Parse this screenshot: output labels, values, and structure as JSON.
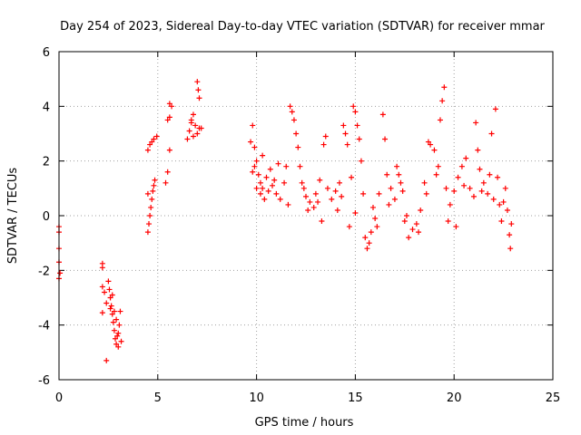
{
  "chart_data": {
    "type": "scatter",
    "title": "Day 254 of 2023, Sidereal Day-to-day VTEC variation (SDTVAR) for receiver mmar",
    "xlabel": "GPS time / hours",
    "ylabel": "SDTVAR / TECUs",
    "xlim": [
      0,
      25
    ],
    "ylim": [
      -6,
      6
    ],
    "xticks": [
      0,
      5,
      10,
      15,
      20,
      25
    ],
    "yticks": [
      -6,
      -4,
      -2,
      0,
      2,
      4,
      6
    ],
    "grid": true,
    "marker": "+",
    "marker_color": "#ff0000",
    "grid_color": "#a0a0a0",
    "series": [
      {
        "name": "SDTVAR",
        "points": [
          [
            0.0,
            -0.4
          ],
          [
            0.0,
            -1.2
          ],
          [
            0.0,
            -1.7
          ],
          [
            0.0,
            -2.3
          ],
          [
            0.0,
            -0.6
          ],
          [
            0.05,
            -2.1
          ],
          [
            2.2,
            -1.75
          ],
          [
            2.2,
            -1.9
          ],
          [
            2.2,
            -2.6
          ],
          [
            2.2,
            -3.55
          ],
          [
            2.3,
            -2.8
          ],
          [
            2.4,
            -5.3
          ],
          [
            2.4,
            -3.2
          ],
          [
            2.5,
            -2.4
          ],
          [
            2.55,
            -2.7
          ],
          [
            2.6,
            -3.0
          ],
          [
            2.65,
            -3.3
          ],
          [
            2.7,
            -3.6
          ],
          [
            2.75,
            -3.9
          ],
          [
            2.8,
            -4.2
          ],
          [
            2.85,
            -4.5
          ],
          [
            2.9,
            -4.7
          ],
          [
            2.95,
            -4.4
          ],
          [
            3.0,
            -4.8
          ],
          [
            3.05,
            -4.0
          ],
          [
            3.1,
            -3.5
          ],
          [
            3.15,
            -4.6
          ],
          [
            2.7,
            -2.9
          ],
          [
            2.8,
            -3.5
          ],
          [
            2.9,
            -3.8
          ],
          [
            3.0,
            -4.3
          ],
          [
            2.6,
            -3.4
          ],
          [
            4.5,
            -0.6
          ],
          [
            4.55,
            -0.3
          ],
          [
            4.6,
            0.0
          ],
          [
            4.65,
            0.3
          ],
          [
            4.7,
            0.6
          ],
          [
            4.75,
            0.9
          ],
          [
            4.5,
            0.8
          ],
          [
            4.8,
            1.1
          ],
          [
            4.85,
            1.3
          ],
          [
            4.5,
            2.4
          ],
          [
            4.6,
            2.6
          ],
          [
            4.7,
            2.7
          ],
          [
            4.8,
            2.8
          ],
          [
            4.95,
            2.9
          ],
          [
            5.4,
            1.2
          ],
          [
            5.5,
            1.6
          ],
          [
            5.6,
            2.4
          ],
          [
            5.5,
            3.5
          ],
          [
            5.6,
            4.1
          ],
          [
            5.7,
            4.0
          ],
          [
            5.6,
            3.6
          ],
          [
            6.5,
            2.8
          ],
          [
            6.6,
            3.1
          ],
          [
            6.7,
            3.4
          ],
          [
            6.8,
            3.7
          ],
          [
            6.9,
            3.3
          ],
          [
            7.0,
            3.0
          ],
          [
            7.1,
            3.2
          ],
          [
            6.7,
            3.5
          ],
          [
            6.8,
            2.9
          ],
          [
            7.0,
            4.9
          ],
          [
            7.05,
            4.6
          ],
          [
            7.1,
            4.3
          ],
          [
            7.2,
            3.2
          ],
          [
            9.7,
            2.7
          ],
          [
            9.8,
            3.3
          ],
          [
            9.9,
            2.5
          ],
          [
            10.0,
            2.0
          ],
          [
            10.1,
            1.5
          ],
          [
            10.2,
            1.2
          ],
          [
            10.3,
            1.0
          ],
          [
            9.8,
            1.6
          ],
          [
            9.9,
            1.8
          ],
          [
            10.0,
            1.0
          ],
          [
            10.2,
            0.8
          ],
          [
            10.4,
            0.6
          ],
          [
            10.6,
            0.9
          ],
          [
            10.8,
            1.1
          ],
          [
            10.5,
            1.4
          ],
          [
            10.7,
            1.7
          ],
          [
            10.9,
            1.3
          ],
          [
            11.0,
            0.8
          ],
          [
            11.2,
            0.6
          ],
          [
            11.4,
            1.2
          ],
          [
            11.5,
            1.8
          ],
          [
            11.7,
            4.0
          ],
          [
            11.8,
            3.8
          ],
          [
            11.9,
            3.5
          ],
          [
            12.0,
            3.0
          ],
          [
            12.1,
            2.5
          ],
          [
            12.2,
            1.8
          ],
          [
            12.3,
            1.2
          ],
          [
            12.5,
            0.7
          ],
          [
            12.7,
            0.5
          ],
          [
            12.9,
            0.3
          ],
          [
            13.0,
            0.8
          ],
          [
            13.2,
            1.3
          ],
          [
            13.4,
            2.6
          ],
          [
            13.5,
            2.9
          ],
          [
            13.6,
            1.0
          ],
          [
            13.8,
            0.6
          ],
          [
            14.0,
            0.9
          ],
          [
            14.2,
            1.2
          ],
          [
            14.4,
            3.3
          ],
          [
            14.5,
            3.0
          ],
          [
            14.6,
            2.6
          ],
          [
            14.8,
            1.4
          ],
          [
            14.9,
            4.0
          ],
          [
            15.0,
            3.8
          ],
          [
            15.1,
            3.3
          ],
          [
            15.2,
            2.8
          ],
          [
            15.3,
            2.0
          ],
          [
            15.4,
            0.8
          ],
          [
            15.5,
            -0.8
          ],
          [
            15.6,
            -1.2
          ],
          [
            15.7,
            -1.0
          ],
          [
            15.8,
            -0.6
          ],
          [
            16.0,
            -0.1
          ],
          [
            16.2,
            0.8
          ],
          [
            16.4,
            3.7
          ],
          [
            16.5,
            2.8
          ],
          [
            16.6,
            1.5
          ],
          [
            16.8,
            1.0
          ],
          [
            17.0,
            0.6
          ],
          [
            17.1,
            1.8
          ],
          [
            17.2,
            1.5
          ],
          [
            17.4,
            0.9
          ],
          [
            17.5,
            -0.2
          ],
          [
            17.7,
            -0.8
          ],
          [
            17.9,
            -0.5
          ],
          [
            18.1,
            -0.3
          ],
          [
            18.3,
            0.2
          ],
          [
            18.5,
            1.2
          ],
          [
            18.7,
            2.7
          ],
          [
            18.8,
            2.6
          ],
          [
            19.0,
            2.4
          ],
          [
            19.2,
            1.8
          ],
          [
            19.3,
            3.5
          ],
          [
            19.4,
            4.2
          ],
          [
            19.5,
            4.7
          ],
          [
            19.6,
            1.0
          ],
          [
            19.8,
            0.4
          ],
          [
            20.0,
            0.9
          ],
          [
            20.2,
            1.4
          ],
          [
            20.4,
            1.8
          ],
          [
            20.6,
            2.1
          ],
          [
            20.8,
            1.0
          ],
          [
            21.0,
            0.7
          ],
          [
            21.1,
            3.4
          ],
          [
            21.2,
            2.4
          ],
          [
            21.3,
            1.7
          ],
          [
            21.5,
            1.2
          ],
          [
            21.7,
            0.8
          ],
          [
            21.9,
            3.0
          ],
          [
            22.1,
            3.9
          ],
          [
            22.2,
            1.4
          ],
          [
            22.3,
            0.4
          ],
          [
            22.4,
            -0.2
          ],
          [
            22.5,
            0.5
          ],
          [
            22.6,
            1.0
          ],
          [
            22.7,
            0.2
          ],
          [
            22.8,
            -0.7
          ],
          [
            22.85,
            -1.2
          ],
          [
            22.9,
            -0.3
          ],
          [
            12.4,
            1.0
          ],
          [
            13.1,
            0.5
          ],
          [
            14.1,
            0.2
          ],
          [
            14.7,
            -0.4
          ],
          [
            15.9,
            0.3
          ],
          [
            16.7,
            0.4
          ],
          [
            17.6,
            0.0
          ],
          [
            18.2,
            -0.6
          ],
          [
            19.1,
            1.5
          ],
          [
            19.7,
            -0.2
          ],
          [
            20.5,
            1.1
          ],
          [
            21.4,
            0.9
          ],
          [
            22.0,
            0.6
          ],
          [
            11.1,
            1.9
          ],
          [
            10.3,
            2.2
          ],
          [
            11.6,
            0.4
          ],
          [
            12.6,
            0.2
          ],
          [
            13.3,
            -0.2
          ],
          [
            14.3,
            0.7
          ],
          [
            15.0,
            0.1
          ],
          [
            16.1,
            -0.4
          ],
          [
            17.3,
            1.2
          ],
          [
            18.6,
            0.8
          ],
          [
            20.1,
            -0.4
          ],
          [
            21.8,
            1.5
          ]
        ]
      }
    ]
  }
}
